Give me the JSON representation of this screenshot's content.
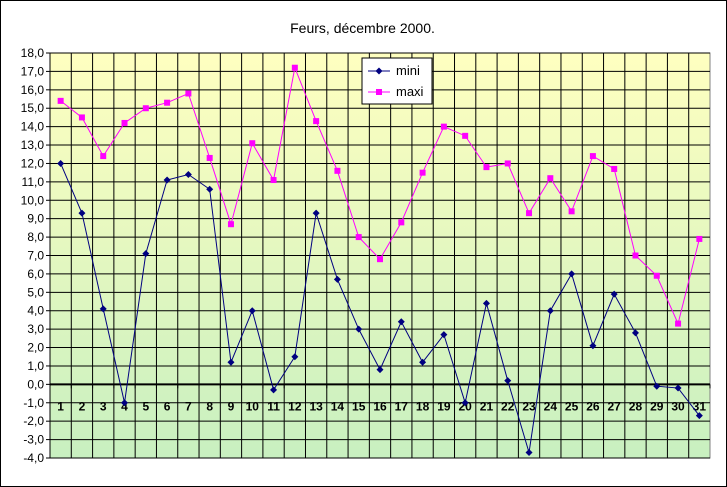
{
  "chart_data": {
    "type": "line",
    "title": "Feurs, décembre 2000.",
    "categories": [
      "1",
      "2",
      "3",
      "4",
      "5",
      "6",
      "7",
      "8",
      "9",
      "10",
      "11",
      "12",
      "13",
      "14",
      "15",
      "16",
      "17",
      "18",
      "19",
      "20",
      "21",
      "22",
      "23",
      "24",
      "25",
      "26",
      "27",
      "28",
      "29",
      "30",
      "31"
    ],
    "series": [
      {
        "name": "mini",
        "color": "#000080",
        "marker": "diamond",
        "values": [
          12.0,
          9.3,
          4.1,
          -1.0,
          7.1,
          11.1,
          11.4,
          10.6,
          1.2,
          4.0,
          -0.3,
          1.5,
          9.3,
          5.7,
          3.0,
          0.8,
          3.4,
          1.2,
          2.7,
          -1.0,
          4.4,
          0.2,
          -3.7,
          4.0,
          6.0,
          2.1,
          4.9,
          2.8,
          -0.1,
          -0.2,
          -1.7
        ]
      },
      {
        "name": "maxi",
        "color": "#ff00ff",
        "marker": "square",
        "values": [
          15.4,
          14.5,
          12.4,
          14.2,
          15.0,
          15.3,
          15.8,
          12.3,
          8.7,
          13.1,
          11.1,
          17.2,
          14.3,
          11.6,
          8.0,
          6.8,
          8.8,
          11.5,
          14.0,
          13.5,
          11.8,
          12.0,
          9.3,
          11.2,
          9.4,
          12.4,
          11.7,
          7.0,
          5.9,
          3.3,
          7.9
        ]
      }
    ],
    "ylim": [
      -4.0,
      18.0
    ],
    "ytick_step": 1.0,
    "yticks": [
      "18,0",
      "17,0",
      "16,0",
      "15,0",
      "14,0",
      "13,0",
      "12,0",
      "11,0",
      "10,0",
      "9,0",
      "8,0",
      "7,0",
      "6,0",
      "5,0",
      "4,0",
      "3,0",
      "2,0",
      "1,0",
      "0,0",
      "-1,0",
      "-2,0",
      "-3,0",
      "-4,0"
    ],
    "grid": true,
    "legend_position": "top-center",
    "background_gradient": [
      "#ffffc0",
      "#c8f0c0"
    ]
  }
}
